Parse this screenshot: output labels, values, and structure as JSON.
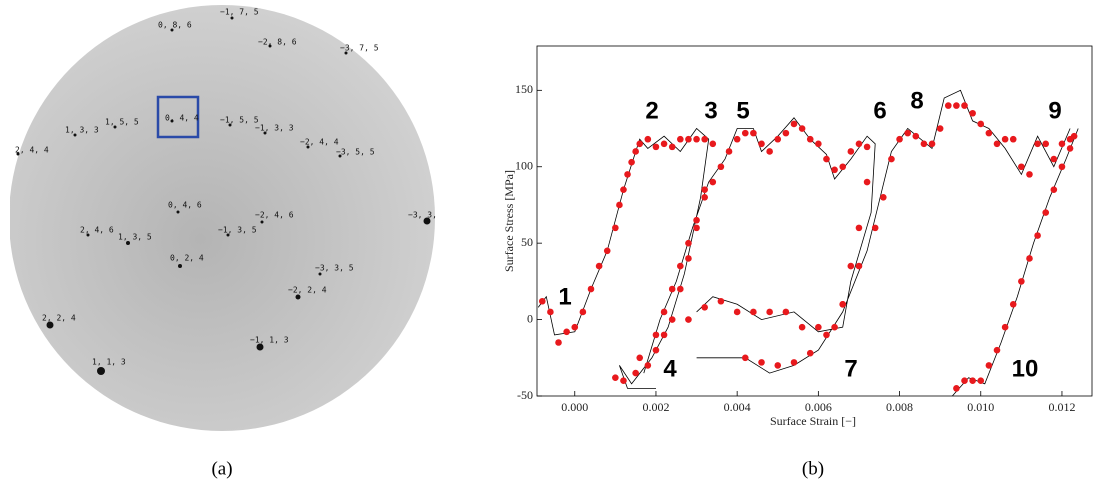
{
  "panel_a": {
    "spot_labels": [
      "0, 8, 6",
      "−1, 7, 5",
      "−2, 8, 6",
      "−3, 7, 5",
      "0, 4, 4",
      "1, 5, 5",
      "1, 3, 3",
      "2, 4, 4",
      "−1, 5, 5",
      "−1, 3, 3",
      "−2, 4, 4",
      "−3, 5, 5",
      "0, 4, 6",
      "−2, 4, 6",
      "−3, 3,",
      "2, 4, 6",
      "1, 3, 5",
      "−1, 3, 5",
      "0, 2, 4",
      "−3, 3, 5",
      "−2, 2, 4",
      "2, 2, 4",
      "−1, 1, 3",
      "1, 1, 3"
    ]
  },
  "captions": [
    "(a)",
    "(b)"
  ],
  "chart_data": {
    "type": "line",
    "xlabel": "Surface Strain [−]",
    "ylabel": "Surface Stress [MPa]",
    "xlim": [
      -0.00093,
      0.01274
    ],
    "ylim": [
      -50,
      179
    ],
    "xticks": [
      {
        "value": 0,
        "label": "0.000"
      },
      {
        "value": 0.002,
        "label": "0.002"
      },
      {
        "value": 0.004,
        "label": "0.004"
      },
      {
        "value": 0.006,
        "label": "0.006"
      },
      {
        "value": 0.008,
        "label": "0.008"
      },
      {
        "value": 0.01,
        "label": "0.010"
      },
      {
        "value": 0.012,
        "label": "0.012"
      }
    ],
    "yticks": [
      -50,
      0,
      50,
      100,
      150
    ],
    "annotations": [
      "1",
      "2",
      "3",
      "4",
      "5",
      "6",
      "7",
      "8",
      "9",
      "10"
    ],
    "series": [
      {
        "style": "line",
        "color": "#000000",
        "x": [
          -0.0009,
          -0.0007,
          -0.0005,
          0,
          0.0004,
          0.0008,
          0.0012,
          0.0016,
          0.0018,
          0.0022,
          0.0026,
          0.003,
          0.0033,
          0.0031,
          0.0027,
          0.0023,
          0.0019,
          0.0014,
          0.0011,
          0.0013,
          0.002,
          null,
          0.0017,
          0.0021,
          0.0025,
          0.0029,
          0.0033,
          0.0037,
          0.004,
          0.0044,
          0.0046,
          0.005,
          0.0054,
          0.0058,
          0.0062,
          0.0064,
          0.0068,
          0.0072,
          0.0074,
          0.0073,
          0.0068,
          0.0066,
          0.006,
          0.0054,
          0.0046,
          0.004,
          0.0034,
          0.003,
          null,
          0.003,
          0.0042,
          0.0048,
          0.0054,
          0.006,
          0.0066,
          0.0072,
          0.0078,
          0.0082,
          0.0088,
          0.0091,
          0.0095,
          0.0098,
          0.0102,
          0.0106,
          0.011,
          0.0114,
          0.0118,
          0.0122,
          null,
          0.0093,
          0.0097,
          0.0101,
          0.0105,
          0.0109,
          0.0113,
          0.0117,
          0.0121,
          0.0124
        ],
        "values": [
          8,
          15,
          -10,
          -8,
          20,
          45,
          85,
          118,
          112,
          120,
          110,
          125,
          118,
          80,
          30,
          -5,
          -25,
          -42,
          -30,
          -45,
          -45,
          null,
          -35,
          0,
          25,
          60,
          90,
          105,
          125,
          125,
          110,
          120,
          132,
          118,
          108,
          92,
          105,
          120,
          115,
          70,
          25,
          -5,
          -8,
          5,
          0,
          10,
          15,
          5,
          null,
          -25,
          -25,
          -35,
          -30,
          -20,
          5,
          45,
          110,
          125,
          112,
          145,
          150,
          130,
          125,
          112,
          95,
          120,
          100,
          125,
          null,
          -50,
          -38,
          -42,
          -15,
          15,
          50,
          80,
          105,
          125
        ]
      },
      {
        "style": "points",
        "color": "#e8191d",
        "x": [
          -0.0008,
          -0.0006,
          -0.0004,
          -0.0002,
          0,
          0.0002,
          0.0004,
          0.0006,
          0.0008,
          0.001,
          0.0011,
          0.0012,
          0.0013,
          0.0014,
          0.0015,
          0.0016,
          0.0018,
          0.002,
          0.0022,
          0.0024,
          0.0026,
          0.0028,
          0.003,
          0.0032,
          0.0034,
          0.0032,
          0.003,
          0.0028,
          0.0026,
          0.0024,
          0.0022,
          0.002,
          0.0018,
          0.0015,
          0.0012,
          0.001,
          0.0016,
          0.002,
          0.0022,
          0.0024,
          0.0026,
          0.0028,
          0.003,
          0.0032,
          0.0034,
          0.0036,
          0.0038,
          0.004,
          0.0042,
          0.0044,
          0.0046,
          0.0048,
          0.005,
          0.0052,
          0.0054,
          0.0056,
          0.0058,
          0.006,
          0.0062,
          0.0064,
          0.0066,
          0.0068,
          0.007,
          0.0072,
          0.0072,
          0.007,
          0.0068,
          0.0066,
          0.0064,
          0.006,
          0.0056,
          0.0052,
          0.0048,
          0.0044,
          0.004,
          0.0036,
          0.0032,
          0.0028,
          0.0042,
          0.0046,
          0.005,
          0.0054,
          0.0058,
          0.0062,
          0.0066,
          0.007,
          0.0074,
          0.0076,
          0.0078,
          0.008,
          0.0082,
          0.0084,
          0.0086,
          0.0088,
          0.009,
          0.0092,
          0.0094,
          0.0096,
          0.0098,
          0.01,
          0.0102,
          0.0104,
          0.0106,
          0.0108,
          0.011,
          0.0112,
          0.0114,
          0.0116,
          0.0118,
          0.012,
          0.0122,
          0.0094,
          0.0096,
          0.0098,
          0.01,
          0.0102,
          0.0104,
          0.0106,
          0.0108,
          0.011,
          0.0112,
          0.0114,
          0.0116,
          0.0118,
          0.012,
          0.0122,
          0.0123
        ],
        "values": [
          12,
          5,
          -15,
          -8,
          -5,
          5,
          20,
          35,
          45,
          60,
          75,
          85,
          95,
          103,
          110,
          115,
          118,
          113,
          115,
          113,
          118,
          118,
          118,
          118,
          115,
          85,
          60,
          40,
          20,
          0,
          -10,
          -20,
          -30,
          -35,
          -40,
          -38,
          -25,
          -10,
          5,
          20,
          35,
          50,
          65,
          80,
          90,
          100,
          110,
          118,
          122,
          122,
          115,
          110,
          118,
          122,
          128,
          125,
          118,
          115,
          105,
          98,
          100,
          110,
          115,
          113,
          90,
          60,
          35,
          10,
          -5,
          -5,
          -5,
          5,
          5,
          5,
          5,
          12,
          8,
          0,
          -25,
          -28,
          -30,
          -28,
          -22,
          -10,
          10,
          35,
          60,
          80,
          105,
          118,
          122,
          120,
          115,
          115,
          125,
          140,
          140,
          140,
          135,
          128,
          122,
          115,
          118,
          118,
          100,
          95,
          115,
          115,
          105,
          115,
          118,
          -45,
          -40,
          -40,
          -40,
          -30,
          -20,
          -5,
          10,
          25,
          40,
          55,
          70,
          85,
          100,
          112,
          120
        ]
      }
    ]
  }
}
